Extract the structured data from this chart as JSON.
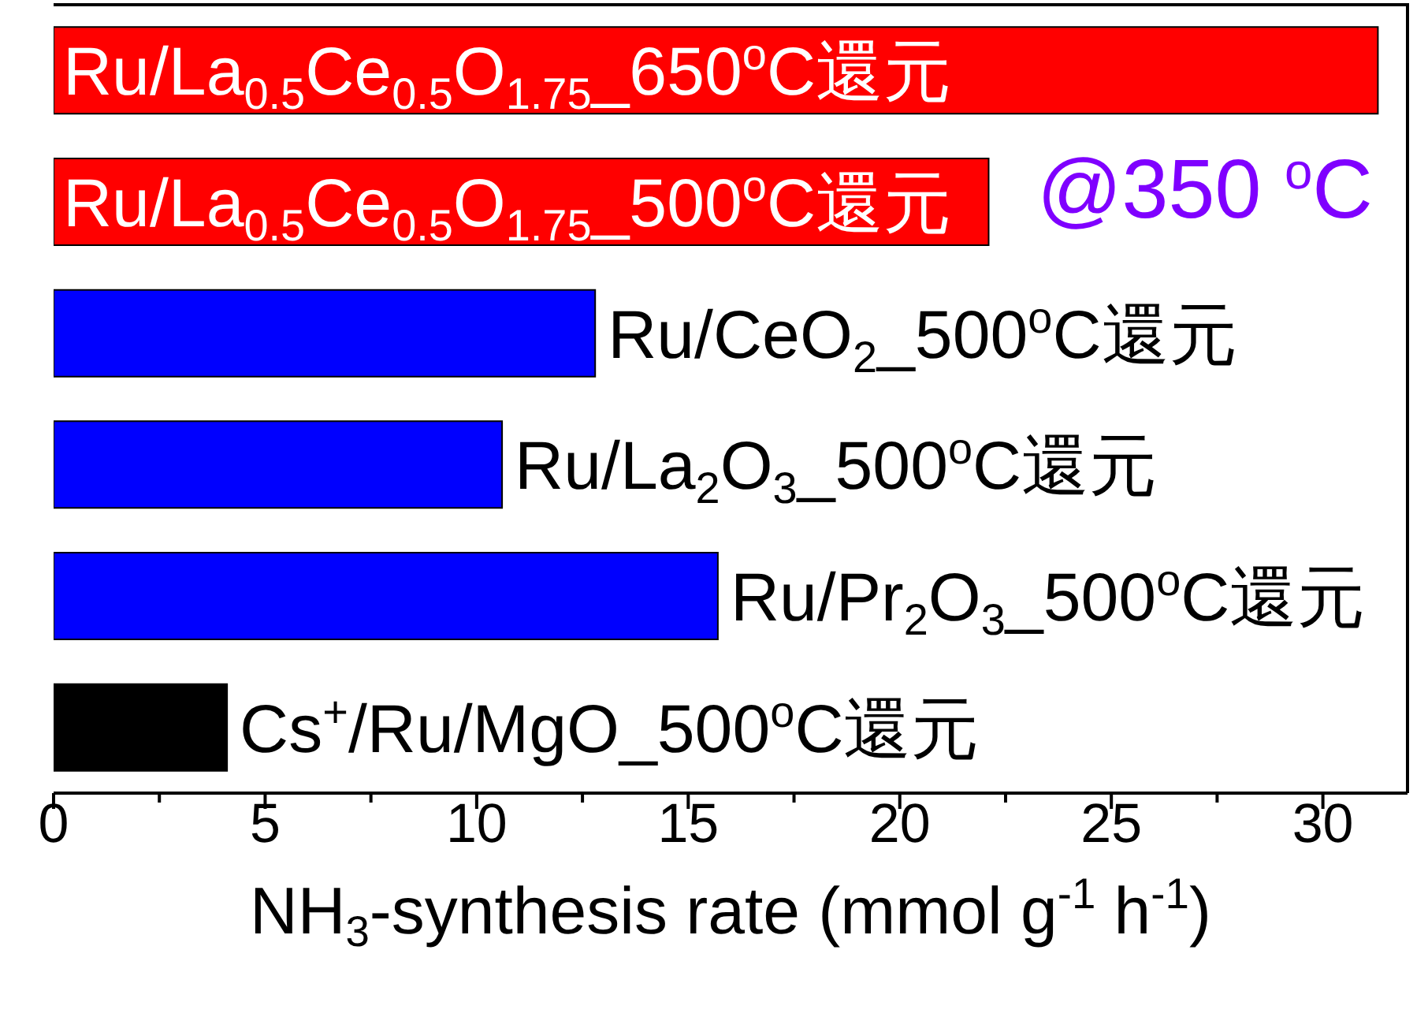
{
  "chart_data": {
    "type": "bar",
    "orientation": "horizontal",
    "categories": [
      "Ru/La$_{0.5}$Ce$_{0.5}$O$_{1.75}$_650$^{o}$C還元",
      "Ru/La$_{0.5}$Ce$_{0.5}$O$_{1.75}$_500$^{o}$C還元",
      "Ru/CeO$_{2}$_500$^{o}$C還元",
      "Ru/La$_{2}$O$_{3}$_500$^{o}$C還元",
      "Ru/Pr$_{2}$O$_{3}$_500$^{o}$C還元",
      "Cs$^{+}$/Ru/MgO_500$^{o}$C還元"
    ],
    "values": [
      31.3,
      22.1,
      12.8,
      10.6,
      15.7,
      4.1
    ],
    "colors": [
      "#ff0000",
      "#ff0000",
      "#0000ff",
      "#0000ff",
      "#0000ff",
      "#000000"
    ],
    "xlabel": "NH$_{3}$-synthesis rate (mmol g$^{-1}$ h$^{-1}$)",
    "xlim": [
      0,
      32
    ],
    "xticks": [
      0,
      {
        "value": 2.5,
        "label": null
      },
      5,
      {
        "value": 7.5,
        "label": null
      },
      10,
      {
        "value": 12.5,
        "label": null
      },
      15,
      {
        "value": 17.5,
        "label": null
      },
      20,
      {
        "value": 22.5,
        "label": null
      },
      25,
      {
        "value": 27.5,
        "label": null
      },
      30
    ],
    "annotations": [
      "@350 $^{o}$C"
    ]
  }
}
